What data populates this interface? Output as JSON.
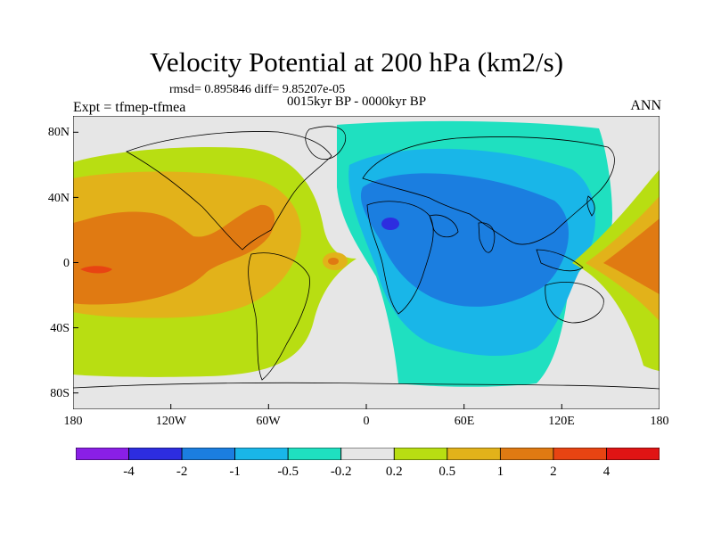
{
  "title": "Velocity Potential at 200 hPa (km2/s)",
  "stats_line": "rmsd= 0.895846 diff= 9.85207e-05",
  "subtitle": "0015kyr BP - 0000kyr BP",
  "experiment": "Expt = tfmep-tfmea",
  "season": "ANN",
  "lat_ticks": [
    "80N",
    "40N",
    "0",
    "40S",
    "80S"
  ],
  "lon_ticks": [
    "180",
    "120W",
    "60W",
    "0",
    "60E",
    "120E",
    "180"
  ],
  "colorbar": {
    "labels": [
      "-4",
      "-2",
      "-1",
      "-0.5",
      "-0.2",
      "0.2",
      "0.5",
      "1",
      "2",
      "4"
    ],
    "colors": [
      "#8a1fe6",
      "#2d2de0",
      "#1b7ee0",
      "#19b6e8",
      "#1fe0c0",
      "#e6e6e6",
      "#b8de12",
      "#e2b21a",
      "#e07a12",
      "#e84412",
      "#e01414"
    ]
  },
  "map_colors": {
    "neutral": "#e6e6e6",
    "pos_weak": "#b8de12",
    "pos_mid": "#e2b21a",
    "pos_strong": "#e07a12",
    "pos_max": "#e84412",
    "neg_weak": "#1fe0c0",
    "neg_mid": "#19b6e8",
    "neg_strong": "#1b7ee0",
    "neg_max": "#2d2de0"
  }
}
